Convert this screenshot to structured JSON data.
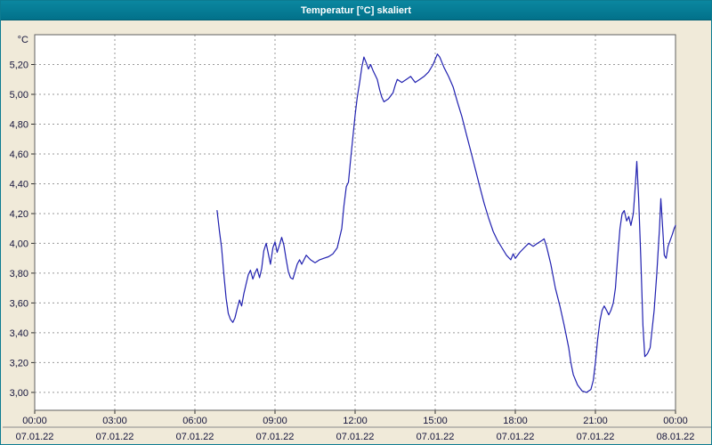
{
  "window": {
    "title": "Temperatur [°C] skaliert"
  },
  "chart_data": {
    "type": "line",
    "title": "Temperatur [°C] skaliert",
    "unit_label": "°C",
    "line_color": "#2121b0",
    "grid": true,
    "legend": "none",
    "xlim": [
      0,
      24
    ],
    "ylim": [
      2.88,
      5.4
    ],
    "x_tick_hours": [
      0,
      3,
      6,
      9,
      12,
      15,
      18,
      21,
      24
    ],
    "x_tick_time_labels": [
      "00:00",
      "03:00",
      "06:00",
      "09:00",
      "12:00",
      "15:00",
      "18:00",
      "21:00",
      "00:00"
    ],
    "x_tick_date_labels": [
      "07.01.22",
      "07.01.22",
      "07.01.22",
      "07.01.22",
      "07.01.22",
      "07.01.22",
      "07.01.22",
      "07.01.22",
      "08.01.22"
    ],
    "y_tick_values": [
      3.0,
      3.2,
      3.4,
      3.6,
      3.8,
      4.0,
      4.2,
      4.4,
      4.6,
      4.8,
      5.0,
      5.2
    ],
    "y_tick_labels": [
      "3,00",
      "3,20",
      "3,40",
      "3,60",
      "3,80",
      "4,00",
      "4,20",
      "4,40",
      "4,60",
      "4,80",
      "5,00",
      "5,20"
    ],
    "series": [
      {
        "name": "Temperatur",
        "points": [
          [
            6.83,
            4.22
          ],
          [
            6.92,
            4.08
          ],
          [
            7.0,
            3.97
          ],
          [
            7.08,
            3.8
          ],
          [
            7.17,
            3.63
          ],
          [
            7.25,
            3.53
          ],
          [
            7.33,
            3.49
          ],
          [
            7.42,
            3.47
          ],
          [
            7.5,
            3.5
          ],
          [
            7.58,
            3.56
          ],
          [
            7.67,
            3.62
          ],
          [
            7.75,
            3.58
          ],
          [
            7.83,
            3.66
          ],
          [
            7.92,
            3.73
          ],
          [
            8.0,
            3.79
          ],
          [
            8.08,
            3.82
          ],
          [
            8.17,
            3.76
          ],
          [
            8.25,
            3.8
          ],
          [
            8.33,
            3.83
          ],
          [
            8.42,
            3.77
          ],
          [
            8.5,
            3.83
          ],
          [
            8.58,
            3.95
          ],
          [
            8.67,
            4.0
          ],
          [
            8.75,
            3.93
          ],
          [
            8.83,
            3.86
          ],
          [
            8.92,
            3.97
          ],
          [
            9.0,
            4.01
          ],
          [
            9.08,
            3.94
          ],
          [
            9.17,
            3.99
          ],
          [
            9.25,
            4.04
          ],
          [
            9.33,
            3.99
          ],
          [
            9.42,
            3.89
          ],
          [
            9.5,
            3.81
          ],
          [
            9.58,
            3.77
          ],
          [
            9.67,
            3.76
          ],
          [
            9.75,
            3.81
          ],
          [
            9.83,
            3.86
          ],
          [
            9.92,
            3.89
          ],
          [
            10.0,
            3.86
          ],
          [
            10.17,
            3.92
          ],
          [
            10.33,
            3.89
          ],
          [
            10.5,
            3.87
          ],
          [
            10.67,
            3.89
          ],
          [
            10.83,
            3.9
          ],
          [
            11.0,
            3.91
          ],
          [
            11.17,
            3.93
          ],
          [
            11.33,
            3.97
          ],
          [
            11.5,
            4.1
          ],
          [
            11.58,
            4.25
          ],
          [
            11.67,
            4.38
          ],
          [
            11.75,
            4.41
          ],
          [
            11.83,
            4.56
          ],
          [
            11.92,
            4.72
          ],
          [
            12.0,
            4.86
          ],
          [
            12.08,
            4.98
          ],
          [
            12.17,
            5.08
          ],
          [
            12.25,
            5.18
          ],
          [
            12.33,
            5.25
          ],
          [
            12.42,
            5.21
          ],
          [
            12.5,
            5.17
          ],
          [
            12.58,
            5.2
          ],
          [
            12.67,
            5.16
          ],
          [
            12.75,
            5.13
          ],
          [
            12.83,
            5.1
          ],
          [
            12.92,
            5.03
          ],
          [
            13.0,
            4.98
          ],
          [
            13.08,
            4.95
          ],
          [
            13.25,
            4.97
          ],
          [
            13.42,
            5.01
          ],
          [
            13.5,
            5.06
          ],
          [
            13.58,
            5.1
          ],
          [
            13.75,
            5.08
          ],
          [
            13.92,
            5.1
          ],
          [
            14.08,
            5.12
          ],
          [
            14.25,
            5.08
          ],
          [
            14.42,
            5.1
          ],
          [
            14.58,
            5.12
          ],
          [
            14.75,
            5.15
          ],
          [
            14.92,
            5.2
          ],
          [
            15.08,
            5.27
          ],
          [
            15.17,
            5.25
          ],
          [
            15.33,
            5.18
          ],
          [
            15.5,
            5.12
          ],
          [
            15.67,
            5.05
          ],
          [
            15.83,
            4.95
          ],
          [
            16.0,
            4.85
          ],
          [
            16.17,
            4.73
          ],
          [
            16.33,
            4.62
          ],
          [
            16.5,
            4.5
          ],
          [
            16.67,
            4.38
          ],
          [
            16.83,
            4.27
          ],
          [
            17.0,
            4.17
          ],
          [
            17.17,
            4.08
          ],
          [
            17.33,
            4.02
          ],
          [
            17.5,
            3.97
          ],
          [
            17.67,
            3.92
          ],
          [
            17.83,
            3.89
          ],
          [
            17.92,
            3.93
          ],
          [
            18.0,
            3.9
          ],
          [
            18.17,
            3.94
          ],
          [
            18.33,
            3.97
          ],
          [
            18.5,
            4.0
          ],
          [
            18.67,
            3.98
          ],
          [
            18.83,
            4.0
          ],
          [
            19.0,
            4.02
          ],
          [
            19.08,
            4.03
          ],
          [
            19.17,
            3.98
          ],
          [
            19.33,
            3.86
          ],
          [
            19.5,
            3.7
          ],
          [
            19.67,
            3.58
          ],
          [
            19.83,
            3.45
          ],
          [
            20.0,
            3.3
          ],
          [
            20.08,
            3.2
          ],
          [
            20.17,
            3.12
          ],
          [
            20.33,
            3.05
          ],
          [
            20.5,
            3.01
          ],
          [
            20.67,
            3.0
          ],
          [
            20.83,
            3.02
          ],
          [
            20.92,
            3.08
          ],
          [
            21.0,
            3.2
          ],
          [
            21.08,
            3.35
          ],
          [
            21.17,
            3.48
          ],
          [
            21.25,
            3.55
          ],
          [
            21.33,
            3.58
          ],
          [
            21.42,
            3.55
          ],
          [
            21.5,
            3.52
          ],
          [
            21.58,
            3.55
          ],
          [
            21.67,
            3.6
          ],
          [
            21.75,
            3.7
          ],
          [
            21.83,
            3.9
          ],
          [
            21.92,
            4.1
          ],
          [
            22.0,
            4.2
          ],
          [
            22.08,
            4.22
          ],
          [
            22.17,
            4.15
          ],
          [
            22.25,
            4.18
          ],
          [
            22.33,
            4.12
          ],
          [
            22.42,
            4.2
          ],
          [
            22.5,
            4.4
          ],
          [
            22.55,
            4.55
          ],
          [
            22.62,
            4.3
          ],
          [
            22.7,
            3.9
          ],
          [
            22.78,
            3.45
          ],
          [
            22.85,
            3.24
          ],
          [
            22.95,
            3.26
          ],
          [
            23.05,
            3.3
          ],
          [
            23.2,
            3.55
          ],
          [
            23.3,
            3.8
          ],
          [
            23.4,
            4.1
          ],
          [
            23.45,
            4.3
          ],
          [
            23.52,
            4.1
          ],
          [
            23.58,
            3.92
          ],
          [
            23.65,
            3.9
          ],
          [
            23.72,
            3.98
          ],
          [
            23.8,
            4.02
          ],
          [
            23.88,
            4.06
          ],
          [
            23.95,
            4.1
          ],
          [
            24.0,
            4.12
          ]
        ]
      }
    ]
  }
}
